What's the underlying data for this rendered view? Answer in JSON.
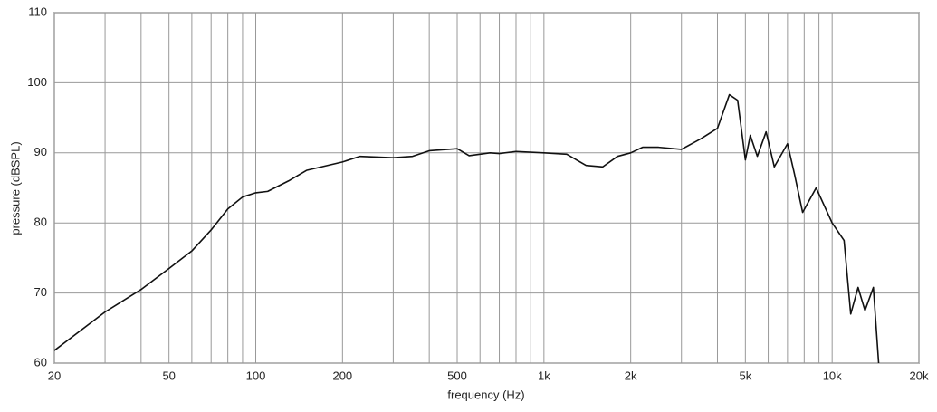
{
  "chart_data": {
    "type": "line",
    "xlabel": "frequency (Hz)",
    "ylabel": "pressure (dBSPL)",
    "xscale": "log",
    "grid": true,
    "color": "#111111",
    "xlim": [
      20,
      20000
    ],
    "ylim": [
      60,
      110
    ],
    "xticks": [
      20,
      50,
      100,
      200,
      500,
      {
        "value": 1000,
        "label": "1k"
      },
      {
        "value": 2000,
        "label": "2k"
      },
      {
        "value": 5000,
        "label": "5k"
      },
      {
        "value": 10000,
        "label": "10k"
      },
      {
        "value": 20000,
        "label": "20k"
      }
    ],
    "xgrid": [
      30,
      40,
      60,
      70,
      80,
      90,
      300,
      400,
      600,
      700,
      800,
      900,
      3000,
      4000,
      6000,
      7000,
      8000,
      9000
    ],
    "yticks": [
      60,
      70,
      80,
      90,
      100,
      110
    ],
    "x": [
      20,
      30,
      40,
      50,
      60,
      70,
      80,
      90,
      100,
      110,
      130,
      150,
      200,
      230,
      300,
      350,
      400,
      500,
      550,
      650,
      700,
      800,
      1000,
      1200,
      1400,
      1600,
      1800,
      2000,
      2200,
      2500,
      3000,
      3500,
      4000,
      4400,
      4700,
      5000,
      5200,
      5500,
      5900,
      6300,
      7000,
      7400,
      7900,
      8800,
      10000,
      11000,
      11600,
      12300,
      13000,
      13900,
      14500
    ],
    "values": [
      61.8,
      67.3,
      70.5,
      73.5,
      76,
      79,
      82,
      83.7,
      84.3,
      84.5,
      86,
      87.5,
      88.7,
      89.5,
      89.3,
      89.5,
      90.3,
      90.6,
      89.6,
      90,
      89.9,
      90.2,
      90,
      89.8,
      88.2,
      88,
      89.5,
      90,
      90.8,
      90.8,
      90.5,
      92,
      93.5,
      98.3,
      97.5,
      89,
      92.5,
      89.5,
      93,
      88,
      91.3,
      87,
      81.5,
      85,
      80,
      77.5,
      67,
      70.8,
      67.5,
      70.8,
      60
    ]
  }
}
